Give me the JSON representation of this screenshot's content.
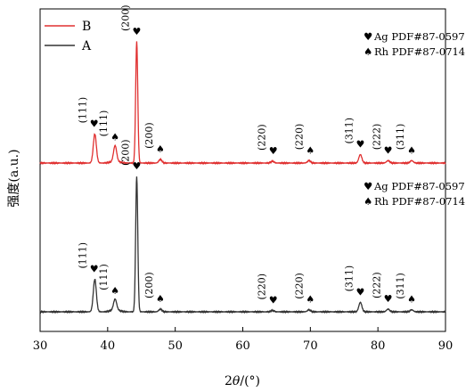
{
  "chart_data": {
    "type": "line",
    "xlabel_prefix": "2",
    "xlabel_theta": "θ",
    "xlabel_suffix": "/(°)",
    "ylabel": "强度(a.u.)",
    "xlim": [
      30,
      90
    ],
    "x_ticks": [
      "30",
      "40",
      "50",
      "60",
      "70",
      "80",
      "90"
    ],
    "legend": {
      "placement": "top-left",
      "entries": [
        {
          "name": "B",
          "color": "#e03030"
        },
        {
          "name": "A",
          "color": "#333333"
        }
      ]
    },
    "reference_legend": [
      {
        "symbol": "♥",
        "text": "Ag PDF#87-0597"
      },
      {
        "symbol": "♠",
        "text": "Rh PDF#87-0714"
      }
    ],
    "series": [
      {
        "name": "B",
        "color": "#e03030",
        "peaks": [
          {
            "x": 38.1,
            "height": 0.24
          },
          {
            "x": 41.1,
            "height": 0.13
          },
          {
            "x": 44.3,
            "height": 1.0
          },
          {
            "x": 47.8,
            "height": 0.03
          },
          {
            "x": 64.4,
            "height": 0.015
          },
          {
            "x": 69.8,
            "height": 0.02
          },
          {
            "x": 77.4,
            "height": 0.07
          },
          {
            "x": 81.5,
            "height": 0.02
          },
          {
            "x": 85.0,
            "height": 0.02
          }
        ],
        "annotations": [
          {
            "x": 38.0,
            "symbol": "♥",
            "label": "(111)"
          },
          {
            "x": 41.1,
            "symbol": "♠",
            "label": "(111)"
          },
          {
            "x": 44.3,
            "symbol": "♥",
            "label": "(200)"
          },
          {
            "x": 47.8,
            "symbol": "♠",
            "label": "(200)"
          },
          {
            "x": 64.5,
            "symbol": "♥",
            "label": "(220)"
          },
          {
            "x": 70.0,
            "symbol": "♠",
            "label": "(220)"
          },
          {
            "x": 77.4,
            "symbol": "♥",
            "label": "(311)"
          },
          {
            "x": 81.5,
            "symbol": "♥",
            "label": "(222)"
          },
          {
            "x": 85.0,
            "symbol": "♠",
            "label": "(311)"
          }
        ]
      },
      {
        "name": "A",
        "color": "#333333",
        "peaks": [
          {
            "x": 38.1,
            "height": 0.24
          },
          {
            "x": 41.1,
            "height": 0.08
          },
          {
            "x": 44.3,
            "height": 1.0
          },
          {
            "x": 47.8,
            "height": 0.02
          },
          {
            "x": 64.4,
            "height": 0.01
          },
          {
            "x": 69.8,
            "height": 0.015
          },
          {
            "x": 77.4,
            "height": 0.07
          },
          {
            "x": 81.5,
            "height": 0.02
          },
          {
            "x": 85.0,
            "height": 0.015
          }
        ],
        "annotations": [
          {
            "x": 38.0,
            "symbol": "♥",
            "label": "(111)"
          },
          {
            "x": 41.1,
            "symbol": "♠",
            "label": "(111)"
          },
          {
            "x": 44.3,
            "symbol": "♥",
            "label": "(200)"
          },
          {
            "x": 47.8,
            "symbol": "♠",
            "label": "(200)"
          },
          {
            "x": 64.5,
            "symbol": "♥",
            "label": "(220)"
          },
          {
            "x": 70.0,
            "symbol": "♠",
            "label": "(220)"
          },
          {
            "x": 77.4,
            "symbol": "♥",
            "label": "(311)"
          },
          {
            "x": 81.5,
            "symbol": "♥",
            "label": "(222)"
          },
          {
            "x": 85.0,
            "symbol": "♠",
            "label": "(311)"
          }
        ]
      }
    ]
  }
}
